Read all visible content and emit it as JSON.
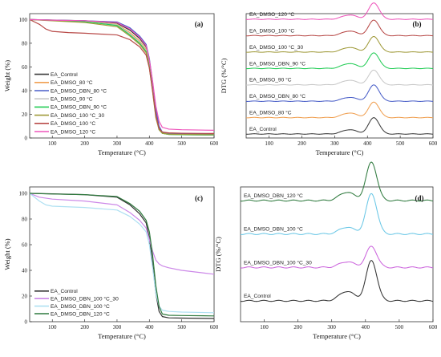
{
  "chart_data": [
    {
      "panel": "(a)",
      "type": "line",
      "xlabel": "Temperature (°C)",
      "ylabel": "Weight (%)",
      "xlim": [
        30,
        600
      ],
      "ylim": [
        0,
        105
      ],
      "xticks": [
        100,
        200,
        300,
        400,
        500,
        600
      ],
      "yticks": [
        0,
        20,
        40,
        60,
        80,
        100
      ],
      "legend": "bottom-left",
      "series": [
        {
          "name": "EA_Control",
          "color": "#3a3a3a",
          "x": [
            30,
            100,
            200,
            300,
            340,
            370,
            390,
            400,
            410,
            420,
            430,
            440,
            460,
            500,
            600
          ],
          "y": [
            100,
            99.6,
            99,
            97,
            91,
            84,
            77,
            65,
            45,
            22,
            8,
            4,
            3,
            2.8,
            2.5
          ]
        },
        {
          "name": "EA_DMSO_80 °C",
          "color": "#f0a052",
          "x": [
            30,
            100,
            200,
            300,
            340,
            370,
            390,
            400,
            410,
            420,
            430,
            440,
            460,
            500,
            600
          ],
          "y": [
            100,
            99.4,
            98.5,
            96,
            89,
            82,
            75,
            62,
            42,
            20,
            8,
            4.5,
            3.5,
            3.2,
            3
          ]
        },
        {
          "name": "EA_DMSO_DBN_80 °C",
          "color": "#4a5fc8",
          "x": [
            30,
            100,
            200,
            300,
            340,
            370,
            390,
            400,
            410,
            420,
            430,
            440,
            460,
            500,
            600
          ],
          "y": [
            100,
            99.5,
            99,
            98,
            93,
            86,
            79,
            67,
            47,
            24,
            10,
            5,
            4,
            3.6,
            3.3
          ]
        },
        {
          "name": "EA_DMSO_90 °C",
          "color": "#c8c8c8",
          "x": [
            30,
            100,
            200,
            300,
            340,
            370,
            390,
            400,
            410,
            420,
            430,
            440,
            460,
            500,
            600
          ],
          "y": [
            100,
            99.3,
            98.4,
            95.5,
            88,
            81,
            74,
            61,
            41,
            19,
            7,
            4,
            3,
            2.8,
            2.6
          ]
        },
        {
          "name": "EA_DMSO_DBN_90 °C",
          "color": "#22cc55",
          "x": [
            30,
            100,
            200,
            300,
            340,
            370,
            390,
            400,
            410,
            420,
            430,
            440,
            460,
            500,
            600
          ],
          "y": [
            100,
            99.2,
            98.2,
            95,
            87,
            80,
            73,
            60,
            40,
            18,
            7,
            4,
            3,
            2.8,
            2.5
          ]
        },
        {
          "name": "EA_DMSO_100 °C_30",
          "color": "#a09a3a",
          "x": [
            30,
            100,
            200,
            300,
            340,
            370,
            390,
            400,
            410,
            420,
            430,
            440,
            460,
            500,
            600
          ],
          "y": [
            100,
            99,
            97.5,
            94,
            86,
            79,
            72,
            59,
            39,
            17,
            7,
            4,
            3.2,
            3,
            2.8
          ]
        },
        {
          "name": "EA_DMSO_100 °C",
          "color": "#b84a48",
          "x": [
            30,
            60,
            80,
            100,
            150,
            200,
            300,
            340,
            370,
            390,
            400,
            410,
            420,
            430,
            440,
            460,
            500,
            600
          ],
          "y": [
            100,
            96,
            92,
            90,
            89,
            88.5,
            87,
            83,
            77,
            70,
            59,
            40,
            19,
            8,
            5,
            4.3,
            4,
            3.8
          ]
        },
        {
          "name": "EA_DMSO_120 °C",
          "color": "#ee55bb",
          "x": [
            30,
            100,
            200,
            300,
            340,
            370,
            390,
            400,
            410,
            420,
            430,
            440,
            460,
            500,
            600
          ],
          "y": [
            100,
            99.5,
            99,
            97.5,
            92,
            85,
            78,
            66,
            48,
            27,
            14,
            9,
            7.5,
            7,
            6.5
          ]
        }
      ]
    },
    {
      "panel": "(b)",
      "type": "line",
      "xlabel": "Temperature (°C)",
      "ylabel": "DTG (%/°C)",
      "xlim": [
        30,
        600
      ],
      "xticks": [
        100,
        200,
        300,
        400,
        500,
        600
      ],
      "curves": [
        {
          "name": "EA_DMSO_120 °C",
          "color": "#ee55bb",
          "offset": 7,
          "peak": 1.05,
          "shoulder": 0.28
        },
        {
          "name": "EA_DMSO_100 °C",
          "color": "#b84a48",
          "offset": 6,
          "peak": 1.0,
          "shoulder": 0.3
        },
        {
          "name": "EA_DMSO_100 °C_30",
          "color": "#a09a3a",
          "offset": 5,
          "peak": 1.0,
          "shoulder": 0.3
        },
        {
          "name": "EA_DMSO_DBN_90 °C",
          "color": "#22cc55",
          "offset": 4,
          "peak": 1.0,
          "shoulder": 0.32
        },
        {
          "name": "EA_DMSO_90 °C",
          "color": "#c8c8c8",
          "offset": 3,
          "peak": 0.95,
          "shoulder": 0.3
        },
        {
          "name": "EA_DMSO_DBN_80 °C",
          "color": "#4a5fc8",
          "offset": 2,
          "peak": 1.05,
          "shoulder": 0.25
        },
        {
          "name": "EA_DMSO_80 °C",
          "color": "#f0a052",
          "offset": 1,
          "peak": 1.0,
          "shoulder": 0.3
        },
        {
          "name": "EA_Control",
          "color": "#3a3a3a",
          "offset": 0,
          "peak": 1.05,
          "shoulder": 0.28
        }
      ]
    },
    {
      "panel": "(c)",
      "type": "line",
      "xlabel": "Temperature (°C)",
      "ylabel": "Weight (%)",
      "xlim": [
        30,
        600
      ],
      "ylim": [
        0,
        105
      ],
      "xticks": [
        100,
        200,
        300,
        400,
        500,
        600
      ],
      "yticks": [
        0,
        20,
        40,
        60,
        80,
        100
      ],
      "legend": "bottom-left",
      "series": [
        {
          "name": "EA_Control",
          "color": "#333333",
          "x": [
            30,
            100,
            200,
            300,
            340,
            370,
            390,
            400,
            410,
            420,
            430,
            440,
            460,
            500,
            600
          ],
          "y": [
            100,
            99.6,
            99,
            97,
            91,
            84,
            77,
            65,
            45,
            22,
            8,
            4,
            3,
            2.8,
            2.5
          ]
        },
        {
          "name": "EA_DMSO_DBN_100 °C_30",
          "color": "#cc88e8",
          "x": [
            30,
            60,
            100,
            200,
            300,
            340,
            370,
            390,
            400,
            410,
            420,
            430,
            440,
            460,
            500,
            600
          ],
          "y": [
            100,
            97,
            95.5,
            94,
            91,
            85,
            79,
            73,
            64,
            55,
            48,
            45,
            43.5,
            42,
            40,
            37
          ]
        },
        {
          "name": "EA_DMSO_DBN_100 °C",
          "color": "#aee0f2",
          "x": [
            30,
            60,
            80,
            100,
            200,
            300,
            340,
            370,
            390,
            400,
            410,
            420,
            430,
            440,
            460,
            500,
            600
          ],
          "y": [
            100,
            94,
            91,
            90,
            89,
            87,
            82,
            76,
            70,
            60,
            42,
            22,
            12,
            9,
            8,
            7.5,
            7
          ]
        },
        {
          "name": "EA_DMSO_DBN_120 °C",
          "color": "#2f7a3e",
          "x": [
            30,
            100,
            200,
            300,
            340,
            370,
            390,
            400,
            410,
            420,
            430,
            440,
            460,
            500,
            600
          ],
          "y": [
            100,
            99.5,
            99,
            97.5,
            92,
            86,
            79,
            70,
            52,
            28,
            12,
            6,
            5,
            4.8,
            4.5
          ]
        }
      ]
    },
    {
      "panel": "(d)",
      "type": "line",
      "xlabel": "Temperature (°C)",
      "ylabel": "DTG (%/°C)",
      "xlim": [
        30,
        600
      ],
      "xticks": [
        100,
        200,
        300,
        400,
        500,
        600
      ],
      "curves": [
        {
          "name": "EA_DMSO_DBN_120 °C",
          "color": "#2f7a3e",
          "offset": 3,
          "peak": 1.0,
          "shoulder": 0.22
        },
        {
          "name": "EA_DMSO_DBN_100 °C",
          "color": "#6ac7e6",
          "offset": 2,
          "peak": 1.05,
          "shoulder": 0.18
        },
        {
          "name": "EA_DMSO_DBN_100 °C_30",
          "color": "#cc66dd",
          "offset": 1,
          "peak": 0.55,
          "shoulder": 0.15
        },
        {
          "name": "EA_Control",
          "color": "#333333",
          "offset": 0,
          "peak": 1.05,
          "shoulder": 0.25
        }
      ]
    }
  ]
}
